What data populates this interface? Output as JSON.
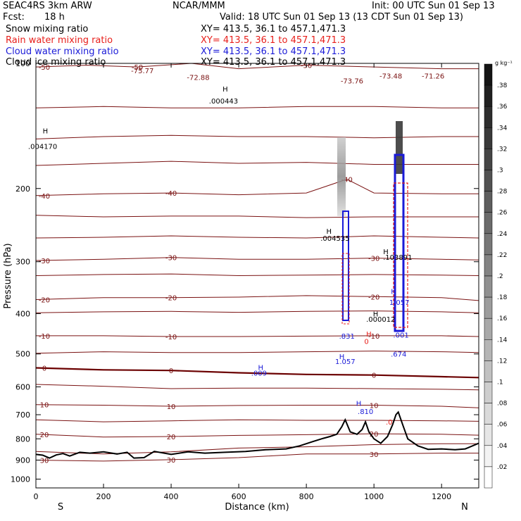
{
  "header": {
    "experiment": "SEAC4RS  3km ARW",
    "org": "NCAR/MMM",
    "init": "Init: 00 UTC Sun 01 Sep 13",
    "fcst_label": "Fcst:",
    "fcst_value": "18 h",
    "valid": "Valid: 18 UTC Sun 01 Sep 13 (13 CDT Sun 01 Sep 13)"
  },
  "fields": [
    {
      "name": "Snow mixing ratio",
      "xy": "XY= 413.5, 36.1 to 457.1,471.3",
      "color": "#000000"
    },
    {
      "name": "Rain water mixing ratio",
      "xy": "XY= 413.5, 36.1 to 457.1,471.3",
      "color": "#e8201c"
    },
    {
      "name": "Cloud water mixing ratio",
      "xy": "XY= 413.5, 36.1 to 457.1,471.3",
      "color": "#1a1ad8"
    },
    {
      "name": "Cloud ice mixing ratio",
      "xy": "XY= 413.5, 36.1 to 457.1,471.3",
      "color": "#000000"
    }
  ],
  "chart_data": {
    "type": "line",
    "xlabel": "Distance (km)",
    "ylabel": "Pressure (hPa)",
    "xlim": [
      0,
      1310
    ],
    "ylim": [
      1050,
      100
    ],
    "y_scale": "log",
    "x_ticks": [
      "0",
      "200",
      "400",
      "600",
      "800",
      "1000",
      "1200"
    ],
    "y_ticks": [
      "100",
      "200",
      "300",
      "400",
      "500",
      "600",
      "700",
      "800",
      "900",
      "1000"
    ],
    "end_labels": {
      "left": "S",
      "right": "N"
    },
    "colorbar": {
      "unit": "g kg⁻¹",
      "ticks": [
        ".38",
        ".36",
        ".34",
        ".32",
        ".3",
        ".28",
        ".26",
        ".24",
        ".22",
        ".2",
        ".18",
        ".16",
        ".14",
        ".12",
        ".1",
        ".08",
        ".06",
        ".04",
        ".02"
      ]
    },
    "isotherm_color": "#7a1212",
    "freezing_color": "#6b0000",
    "terrain_color": "#000000",
    "isotherms": [
      {
        "label": "-50",
        "p": [
          [
            0,
            102
          ],
          [
            150,
            101
          ],
          [
            300,
            102
          ],
          [
            460,
            100
          ],
          [
            600,
            103
          ],
          [
            800,
            101
          ],
          [
            1000,
            102
          ],
          [
            1200,
            103
          ],
          [
            1310,
            103
          ]
        ]
      },
      {
        "label": "",
        "p": [
          [
            0,
            128
          ],
          [
            200,
            127
          ],
          [
            400,
            128
          ],
          [
            600,
            128
          ],
          [
            800,
            127
          ],
          [
            1000,
            127
          ],
          [
            1200,
            128
          ],
          [
            1310,
            128
          ]
        ]
      },
      {
        "label": "",
        "p": [
          [
            0,
            152
          ],
          [
            200,
            150
          ],
          [
            400,
            149
          ],
          [
            600,
            150
          ],
          [
            800,
            150
          ],
          [
            1000,
            151
          ],
          [
            1200,
            150
          ],
          [
            1310,
            150
          ]
        ]
      },
      {
        "label": "",
        "p": [
          [
            0,
            176
          ],
          [
            200,
            174
          ],
          [
            400,
            172
          ],
          [
            600,
            174
          ],
          [
            800,
            173
          ],
          [
            1000,
            175
          ],
          [
            1200,
            175
          ],
          [
            1310,
            175
          ]
        ]
      },
      {
        "label": "-40",
        "p": [
          [
            0,
            208
          ],
          [
            200,
            206
          ],
          [
            400,
            205
          ],
          [
            600,
            207
          ],
          [
            800,
            205
          ],
          [
            920,
            190
          ],
          [
            1000,
            205
          ],
          [
            1200,
            206
          ],
          [
            1310,
            206
          ]
        ]
      },
      {
        "label": "",
        "p": [
          [
            0,
            232
          ],
          [
            200,
            234
          ],
          [
            400,
            233
          ],
          [
            600,
            233
          ],
          [
            800,
            235
          ],
          [
            1000,
            234
          ],
          [
            1200,
            234
          ],
          [
            1310,
            234
          ]
        ]
      },
      {
        "label": "",
        "p": [
          [
            0,
            263
          ],
          [
            200,
            262
          ],
          [
            400,
            260
          ],
          [
            600,
            262
          ],
          [
            800,
            263
          ],
          [
            1000,
            260
          ],
          [
            1200,
            262
          ],
          [
            1310,
            263
          ]
        ]
      },
      {
        "label": "-30",
        "p": [
          [
            0,
            298
          ],
          [
            200,
            296
          ],
          [
            400,
            293
          ],
          [
            600,
            296
          ],
          [
            800,
            296
          ],
          [
            1000,
            294
          ],
          [
            1200,
            296
          ],
          [
            1310,
            297
          ]
        ]
      },
      {
        "label": "",
        "p": [
          [
            0,
            324
          ],
          [
            200,
            322
          ],
          [
            400,
            321
          ],
          [
            600,
            324
          ],
          [
            800,
            323
          ],
          [
            1000,
            322
          ],
          [
            1200,
            323
          ],
          [
            1310,
            324
          ]
        ]
      },
      {
        "label": "-20",
        "p": [
          [
            0,
            370
          ],
          [
            200,
            366
          ],
          [
            400,
            366
          ],
          [
            600,
            365
          ],
          [
            800,
            362
          ],
          [
            1000,
            364
          ],
          [
            1200,
            366
          ],
          [
            1310,
            372
          ]
        ]
      },
      {
        "label": "",
        "p": [
          [
            0,
            398
          ],
          [
            200,
            396
          ],
          [
            400,
            395
          ],
          [
            600,
            397
          ],
          [
            800,
            395
          ],
          [
            1000,
            394
          ],
          [
            1200,
            396
          ],
          [
            1310,
            398
          ]
        ]
      },
      {
        "label": "-10",
        "p": [
          [
            0,
            452
          ],
          [
            200,
            452
          ],
          [
            400,
            454
          ],
          [
            600,
            454
          ],
          [
            800,
            453
          ],
          [
            1000,
            452
          ],
          [
            1200,
            452
          ],
          [
            1310,
            454
          ]
        ]
      },
      {
        "label": "",
        "p": [
          [
            0,
            498
          ],
          [
            200,
            494
          ],
          [
            400,
            496
          ],
          [
            600,
            496
          ],
          [
            800,
            494
          ],
          [
            1000,
            492
          ],
          [
            1200,
            494
          ],
          [
            1310,
            496
          ]
        ]
      },
      {
        "label": "0",
        "p": [
          [
            0,
            540
          ],
          [
            200,
            546
          ],
          [
            400,
            548
          ],
          [
            600,
            555
          ],
          [
            800,
            560
          ],
          [
            1000,
            562
          ],
          [
            1200,
            567
          ],
          [
            1310,
            570
          ]
        ]
      },
      {
        "label": "",
        "p": [
          [
            0,
            592
          ],
          [
            200,
            598
          ],
          [
            400,
            606
          ],
          [
            600,
            604
          ],
          [
            800,
            604
          ],
          [
            1000,
            606
          ],
          [
            1200,
            608
          ],
          [
            1310,
            610
          ]
        ]
      },
      {
        "label": "10",
        "p": [
          [
            0,
            662
          ],
          [
            200,
            664
          ],
          [
            400,
            668
          ],
          [
            600,
            665
          ],
          [
            800,
            664
          ],
          [
            1000,
            664
          ],
          [
            1200,
            668
          ],
          [
            1310,
            674
          ]
        ]
      },
      {
        "label": "",
        "p": [
          [
            0,
            720
          ],
          [
            200,
            728
          ],
          [
            400,
            724
          ],
          [
            600,
            720
          ],
          [
            800,
            722
          ],
          [
            1000,
            722
          ],
          [
            1200,
            724
          ],
          [
            1310,
            726
          ]
        ]
      },
      {
        "label": "20",
        "p": [
          [
            0,
            780
          ],
          [
            200,
            792
          ],
          [
            400,
            790
          ],
          [
            600,
            785
          ],
          [
            800,
            782
          ],
          [
            1000,
            778
          ],
          [
            1200,
            780
          ],
          [
            1310,
            784
          ]
        ]
      },
      {
        "label": "",
        "p": [
          [
            0,
            858
          ],
          [
            200,
            870
          ],
          [
            400,
            860
          ],
          [
            600,
            842
          ],
          [
            800,
            836
          ],
          [
            1000,
            826
          ],
          [
            1200,
            822
          ],
          [
            1310,
            822
          ]
        ]
      },
      {
        "label": "30",
        "p": [
          [
            0,
            900
          ],
          [
            200,
            905
          ],
          [
            400,
            898
          ],
          [
            600,
            888
          ],
          [
            800,
            870
          ],
          [
            1000,
            870
          ],
          [
            1200,
            866
          ],
          [
            1310,
            866
          ]
        ]
      }
    ],
    "terrain": [
      [
        0,
        872
      ],
      [
        20,
        876
      ],
      [
        40,
        890
      ],
      [
        60,
        875
      ],
      [
        80,
        868
      ],
      [
        100,
        880
      ],
      [
        130,
        862
      ],
      [
        160,
        866
      ],
      [
        200,
        860
      ],
      [
        240,
        870
      ],
      [
        270,
        862
      ],
      [
        290,
        890
      ],
      [
        320,
        888
      ],
      [
        350,
        858
      ],
      [
        400,
        872
      ],
      [
        450,
        860
      ],
      [
        500,
        866
      ],
      [
        560,
        862
      ],
      [
        620,
        858
      ],
      [
        680,
        850
      ],
      [
        740,
        846
      ],
      [
        780,
        832
      ],
      [
        820,
        812
      ],
      [
        850,
        798
      ],
      [
        870,
        790
      ],
      [
        890,
        780
      ],
      [
        905,
        748
      ],
      [
        915,
        720
      ],
      [
        930,
        770
      ],
      [
        950,
        780
      ],
      [
        965,
        760
      ],
      [
        975,
        728
      ],
      [
        985,
        770
      ],
      [
        1000,
        800
      ],
      [
        1020,
        820
      ],
      [
        1040,
        790
      ],
      [
        1055,
        740
      ],
      [
        1065,
        700
      ],
      [
        1072,
        690
      ],
      [
        1085,
        740
      ],
      [
        1100,
        800
      ],
      [
        1130,
        832
      ],
      [
        1160,
        848
      ],
      [
        1200,
        846
      ],
      [
        1240,
        850
      ],
      [
        1270,
        846
      ],
      [
        1310,
        820
      ]
    ],
    "field_labels": [
      {
        "text": "-75.77",
        "x": 315,
        "p": 104,
        "color": "#7a1212"
      },
      {
        "text": "-72.88",
        "x": 480,
        "p": 108,
        "color": "#7a1212"
      },
      {
        "text": "-73.76",
        "x": 935,
        "p": 110,
        "color": "#7a1212"
      },
      {
        "text": "-73.48",
        "x": 1050,
        "p": 107,
        "color": "#7a1212"
      },
      {
        "text": "-71.26",
        "x": 1175,
        "p": 107,
        "color": "#7a1212"
      },
      {
        "text": ".000443",
        "x": 555,
        "p": 123,
        "color": "#000000"
      },
      {
        "text": ".004170",
        "x": 20,
        "p": 158,
        "color": "#000000"
      },
      {
        "text": ".004535",
        "x": 885,
        "p": 263,
        "color": "#000000"
      },
      {
        "text": ".103891",
        "x": 1070,
        "p": 292,
        "color": "#000000"
      },
      {
        "text": ".000012",
        "x": 1020,
        "p": 412,
        "color": "#000000"
      },
      {
        "text": "1.057",
        "x": 1075,
        "p": 375,
        "color": "#1a1ad8"
      },
      {
        "text": ".001",
        "x": 1080,
        "p": 450,
        "color": "#1a1ad8"
      },
      {
        "text": ".831",
        "x": 920,
        "p": 452,
        "color": "#1a1ad8"
      },
      {
        "text": ".009",
        "x": 660,
        "p": 555,
        "color": "#1a1ad8"
      },
      {
        "text": "1.057",
        "x": 915,
        "p": 520,
        "color": "#1a1ad8"
      },
      {
        "text": ".810",
        "x": 975,
        "p": 686,
        "color": "#1a1ad8"
      },
      {
        "text": ".674",
        "x": 1073,
        "p": 500,
        "color": "#1a1ad8"
      },
      {
        "text": "0",
        "x": 978,
        "p": 466,
        "color": "#e8201c"
      },
      {
        "text": ".0",
        "x": 1045,
        "p": 728,
        "color": "#e8201c"
      }
    ],
    "field_markers": [
      {
        "text": "H",
        "x": 560,
        "p": 115,
        "color": "#000000"
      },
      {
        "text": "H",
        "x": 28,
        "p": 145,
        "color": "#000000"
      },
      {
        "text": "H",
        "x": 867,
        "p": 253,
        "color": "#000000"
      },
      {
        "text": "H",
        "x": 1035,
        "p": 283,
        "color": "#000000"
      },
      {
        "text": "H",
        "x": 1005,
        "p": 400,
        "color": "#000000"
      },
      {
        "text": "H",
        "x": 985,
        "p": 447,
        "color": "#e8201c"
      },
      {
        "text": "H",
        "x": 665,
        "p": 538,
        "color": "#1a1ad8"
      },
      {
        "text": "H",
        "x": 955,
        "p": 656,
        "color": "#1a1ad8"
      },
      {
        "text": "H",
        "x": 905,
        "p": 506,
        "color": "#1a1ad8"
      },
      {
        "text": "H",
        "x": 1058,
        "p": 353,
        "color": "#1a1ad8"
      }
    ]
  }
}
